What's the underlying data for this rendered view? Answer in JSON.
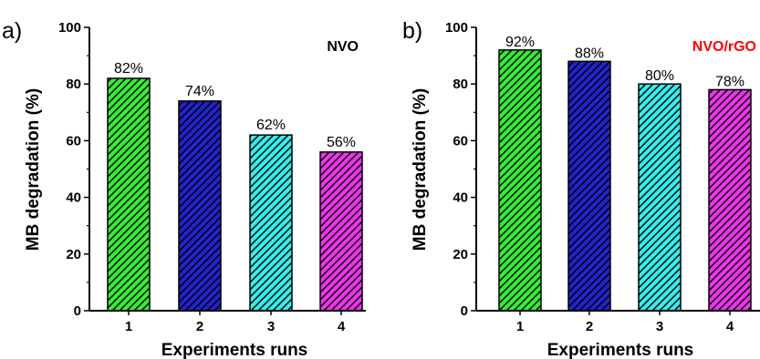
{
  "chart_data": [
    {
      "type": "bar",
      "panel_label": "a)",
      "title": "NVO",
      "title_color": "#000000",
      "categories": [
        "1",
        "2",
        "3",
        "4"
      ],
      "values": [
        82,
        74,
        62,
        56
      ],
      "value_labels": [
        "82%",
        "74%",
        "62%",
        "56%"
      ],
      "colors": [
        "#33ee33",
        "#2222cc",
        "#33eeee",
        "#ee33ee"
      ],
      "fill_pattern": "diagonal-hatch",
      "xlabel": "Experiments runs",
      "ylabel": "MB degradation (%)",
      "ylim": [
        0,
        100
      ],
      "yticks": [
        0,
        20,
        40,
        60,
        80,
        100
      ],
      "grid": false
    },
    {
      "type": "bar",
      "panel_label": "b)",
      "title": "NVO/rGO",
      "title_color": "#ff0000",
      "categories": [
        "1",
        "2",
        "3",
        "4"
      ],
      "values": [
        92,
        88,
        80,
        78
      ],
      "value_labels": [
        "92%",
        "88%",
        "80%",
        "78%"
      ],
      "colors": [
        "#33ee33",
        "#2222cc",
        "#33eeee",
        "#ee33ee"
      ],
      "fill_pattern": "diagonal-hatch",
      "xlabel": "Experiments runs",
      "ylabel": "MB degradation (%)",
      "ylim": [
        0,
        100
      ],
      "yticks": [
        0,
        20,
        40,
        60,
        80,
        100
      ],
      "grid": false
    }
  ]
}
